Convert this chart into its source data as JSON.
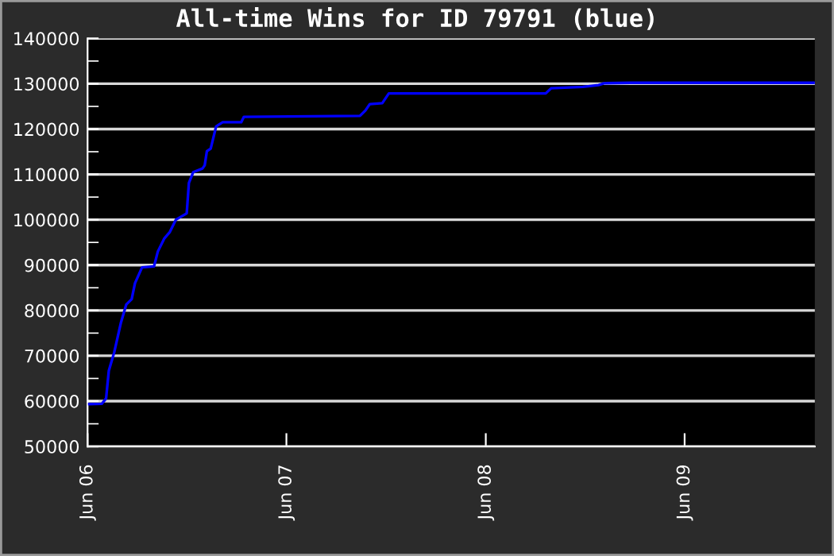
{
  "chart_data": {
    "type": "line",
    "title": "All-time Wins for ID 79791 (blue)",
    "x": [
      "2006-06-04",
      "2006-06-27",
      "2006-07-05",
      "2006-07-10",
      "2006-07-20",
      "2006-08-01",
      "2006-08-11",
      "2006-08-21",
      "2006-08-27",
      "2006-09-09",
      "2006-10-01",
      "2006-10-08",
      "2006-10-20",
      "2006-10-30",
      "2006-11-10",
      "2006-11-30",
      "2006-12-04",
      "2006-12-12",
      "2006-12-29",
      "2007-01-02",
      "2007-01-06",
      "2007-01-13",
      "2007-01-23",
      "2007-02-04",
      "2007-03-10",
      "2007-03-15",
      "2007-10-14",
      "2007-10-24",
      "2007-11-01",
      "2007-11-24",
      "2007-12-06",
      "2008-09-19",
      "2008-09-29",
      "2008-11-26",
      "2008-12-25",
      "2009-01-04",
      "2009-02-21",
      "2010-01-26"
    ],
    "series": [
      {
        "color": "#0000ff",
        "values": [
          59350,
          59400,
          60600,
          66700,
          70800,
          77200,
          81300,
          82500,
          86000,
          89500,
          89700,
          93000,
          95900,
          97300,
          100000,
          101400,
          108100,
          110500,
          111300,
          112000,
          115100,
          115700,
          120600,
          121500,
          121500,
          122700,
          122900,
          124100,
          125500,
          125700,
          127850,
          127850,
          129000,
          129300,
          129700,
          130100,
          130200,
          130200
        ]
      }
    ],
    "xlim": [
      "2006-06-01",
      "2010-01-26"
    ],
    "xticks": [
      {
        "value": "2006-06-01",
        "label": "Jun 06"
      },
      {
        "value": "2007-06-01",
        "label": "Jun 07"
      },
      {
        "value": "2008-06-01",
        "label": "Jun 08"
      },
      {
        "value": "2009-06-01",
        "label": "Jun 09"
      }
    ],
    "ylim": [
      50000,
      140000
    ],
    "yticks": [
      50000,
      {
        "value": 55000,
        "label": null
      },
      60000,
      {
        "value": 65000,
        "label": null
      },
      70000,
      {
        "value": 75000,
        "label": null
      },
      80000,
      {
        "value": 85000,
        "label": null
      },
      90000,
      {
        "value": 95000,
        "label": null
      },
      100000,
      {
        "value": 105000,
        "label": null
      },
      110000,
      {
        "value": 115000,
        "label": null
      },
      120000,
      {
        "value": 125000,
        "label": null
      },
      130000,
      {
        "value": 135000,
        "label": null
      },
      140000
    ],
    "grid": "y",
    "legend": false,
    "marker": "none",
    "line_style": "solid"
  }
}
